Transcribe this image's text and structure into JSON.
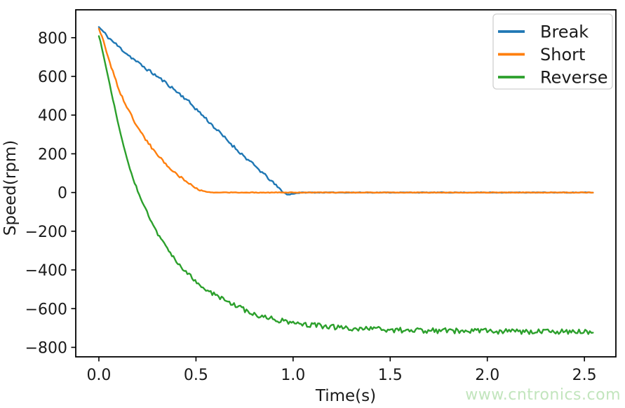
{
  "figure": {
    "background": "#ffffff",
    "watermark": {
      "text": "www.cntronics.com",
      "color": "#c2e5bd"
    }
  },
  "chart_data": {
    "type": "line",
    "title": "",
    "xlabel": "Time(s)",
    "ylabel": "Speed(rpm)",
    "xlim": [
      -0.119,
      2.662
    ],
    "ylim": [
      -849,
      944
    ],
    "grid": false,
    "x_ticks": {
      "values": [
        0.0,
        0.5,
        1.0,
        1.5,
        2.0,
        2.5
      ],
      "labels": [
        "0.0",
        "0.5",
        "1.0",
        "1.5",
        "2.0",
        "2.5"
      ]
    },
    "y_ticks": {
      "values": [
        800,
        600,
        400,
        200,
        0,
        -200,
        -400,
        -600,
        -800
      ],
      "labels": [
        "800",
        "600",
        "400",
        "200",
        "0",
        "−200",
        "−400",
        "−600",
        "−800"
      ]
    },
    "legend": {
      "position": "upper right",
      "entries": [
        "Break",
        "Short",
        "Reverse"
      ]
    },
    "line_width": 2.4,
    "series": [
      {
        "name": "Break",
        "color": "#1f77b4",
        "points": [
          [
            0.0,
            855,
            8
          ],
          [
            0.05,
            800,
            8
          ],
          [
            0.1,
            755,
            8
          ],
          [
            0.15,
            712,
            8
          ],
          [
            0.2,
            672,
            8
          ],
          [
            0.25,
            635,
            8
          ],
          [
            0.3,
            600,
            8
          ],
          [
            0.35,
            563,
            8
          ],
          [
            0.4,
            522,
            8
          ],
          [
            0.45,
            482,
            8
          ],
          [
            0.5,
            432,
            8
          ],
          [
            0.55,
            383,
            8
          ],
          [
            0.6,
            331,
            8
          ],
          [
            0.65,
            281,
            8
          ],
          [
            0.7,
            232,
            8
          ],
          [
            0.75,
            185,
            8
          ],
          [
            0.8,
            140,
            8
          ],
          [
            0.85,
            95,
            7
          ],
          [
            0.9,
            48,
            6
          ],
          [
            0.94,
            10,
            5
          ],
          [
            0.97,
            -12,
            3
          ],
          [
            1.01,
            -4,
            2
          ],
          [
            1.05,
            0,
            1.5
          ],
          [
            2.55,
            0,
            1.5
          ]
        ]
      },
      {
        "name": "Short",
        "color": "#ff7f0e",
        "points": [
          [
            0.0,
            848,
            7
          ],
          [
            0.02,
            792,
            7
          ],
          [
            0.04,
            726,
            7
          ],
          [
            0.06,
            662,
            7
          ],
          [
            0.08,
            600,
            7
          ],
          [
            0.1,
            540,
            7
          ],
          [
            0.13,
            470,
            7
          ],
          [
            0.16,
            410,
            7
          ],
          [
            0.19,
            355,
            7
          ],
          [
            0.22,
            305,
            7
          ],
          [
            0.25,
            262,
            7
          ],
          [
            0.28,
            222,
            6
          ],
          [
            0.31,
            185,
            6
          ],
          [
            0.34,
            152,
            6
          ],
          [
            0.37,
            122,
            6
          ],
          [
            0.4,
            95,
            6
          ],
          [
            0.43,
            72,
            5
          ],
          [
            0.46,
            50,
            5
          ],
          [
            0.49,
            30,
            4
          ],
          [
            0.52,
            12,
            3
          ],
          [
            0.55,
            3,
            2
          ],
          [
            0.58,
            0,
            1.5
          ],
          [
            2.55,
            0,
            1.5
          ]
        ]
      },
      {
        "name": "Reverse",
        "color": "#2ca02c",
        "points": [
          [
            0.0,
            810,
            4
          ],
          [
            0.01,
            770,
            4
          ],
          [
            0.03,
            680,
            4
          ],
          [
            0.05,
            585,
            4
          ],
          [
            0.07,
            490,
            4
          ],
          [
            0.09,
            400,
            4
          ],
          [
            0.11,
            310,
            4
          ],
          [
            0.13,
            228,
            4
          ],
          [
            0.15,
            155,
            4
          ],
          [
            0.17,
            90,
            4
          ],
          [
            0.19,
            35,
            5
          ],
          [
            0.21,
            -15,
            5
          ],
          [
            0.24,
            -85,
            6
          ],
          [
            0.27,
            -150,
            7
          ],
          [
            0.3,
            -210,
            8
          ],
          [
            0.34,
            -275,
            9
          ],
          [
            0.38,
            -330,
            9
          ],
          [
            0.42,
            -380,
            10
          ],
          [
            0.46,
            -422,
            10
          ],
          [
            0.5,
            -458,
            10
          ],
          [
            0.55,
            -497,
            11
          ],
          [
            0.6,
            -530,
            11
          ],
          [
            0.65,
            -558,
            11
          ],
          [
            0.7,
            -582,
            12
          ],
          [
            0.75,
            -607,
            12
          ],
          [
            0.8,
            -628,
            12
          ],
          [
            0.85,
            -643,
            12
          ],
          [
            0.9,
            -655,
            13
          ],
          [
            0.95,
            -664,
            13
          ],
          [
            1.0,
            -673,
            13
          ],
          [
            1.1,
            -686,
            13
          ],
          [
            1.2,
            -695,
            14
          ],
          [
            1.35,
            -704,
            14
          ],
          [
            1.5,
            -710,
            14
          ],
          [
            1.7,
            -714,
            14
          ],
          [
            1.9,
            -716,
            14
          ],
          [
            2.1,
            -718,
            14
          ],
          [
            2.3,
            -719,
            14
          ],
          [
            2.55,
            -720,
            14
          ]
        ]
      }
    ]
  }
}
